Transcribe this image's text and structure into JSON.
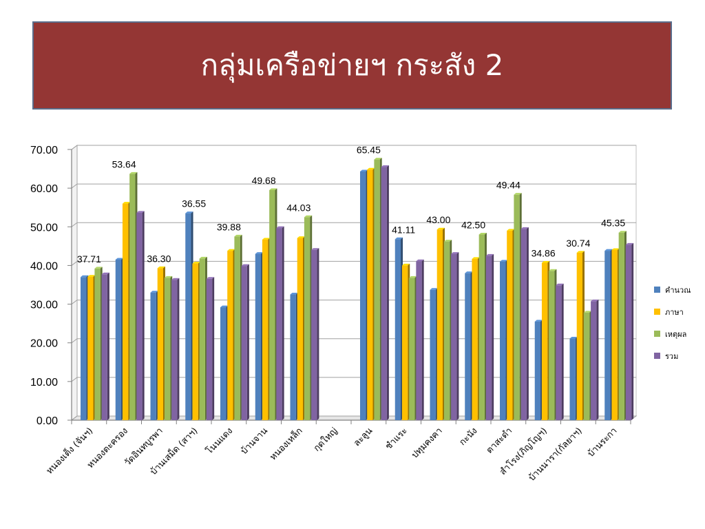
{
  "slide": {
    "title": "กลุ่มเครือข่ายฯ กระสัง 2"
  },
  "chart_data": {
    "type": "bar",
    "ylim": [
      0,
      70
    ],
    "yticks": [
      "0.00",
      "10.00",
      "20.00",
      "30.00",
      "40.00",
      "50.00",
      "60.00",
      "70.00"
    ],
    "legend_position": "right",
    "grid": true,
    "categories": [
      "หนองเต็ง (จันฯ)",
      "หนองตะครอง",
      "วัดอินทบูรพา",
      "บ้านเสม็ด (สาฯ)",
      "โนนแดง",
      "บ้านจาน",
      "หนองเหล็ก",
      "กุดใหญ่",
      "ละลูน",
      "ชำแระ",
      "ปทุมคงคา",
      "กะนัง",
      "ตาสะดำ",
      "สำโรง(ภิญโญฯ)",
      "บ้านนารา(กัลยาฯ)",
      "บ้านระกา"
    ],
    "series": [
      {
        "name": "คำนวณ",
        "color": "#4f81bd",
        "values": [
          37.0,
          41.5,
          33.0,
          53.5,
          29.2,
          43.0,
          32.5,
          null,
          64.3,
          46.8,
          33.7,
          38.0,
          41.0,
          25.5,
          21.1,
          43.8
        ]
      },
      {
        "name": "ภาษา",
        "color": "#ffc000",
        "values": [
          37.1,
          56.0,
          39.3,
          40.5,
          43.8,
          46.7,
          47.1,
          null,
          64.8,
          40.0,
          49.3,
          41.7,
          49.0,
          40.7,
          43.3,
          44.0
        ]
      },
      {
        "name": "เหตุผล",
        "color": "#9bbb59",
        "values": [
          39.2,
          63.7,
          36.8,
          41.8,
          47.5,
          59.5,
          52.5,
          null,
          67.4,
          36.8,
          46.2,
          48.0,
          58.3,
          38.6,
          27.8,
          48.5
        ]
      },
      {
        "name": "รวม",
        "color": "#8064a2",
        "values": [
          37.71,
          53.64,
          36.3,
          36.55,
          39.88,
          49.68,
          44.03,
          null,
          65.45,
          41.11,
          43.0,
          42.5,
          49.44,
          34.86,
          30.74,
          45.35
        ]
      }
    ],
    "data_labels": [
      "37.71",
      "53.64",
      "36.30",
      "36.55",
      "39.88",
      "49.68",
      "44.03",
      "",
      "65.45",
      "41.11",
      "43.00",
      "42.50",
      "49.44",
      "34.86",
      "30.74",
      "45.35"
    ]
  }
}
